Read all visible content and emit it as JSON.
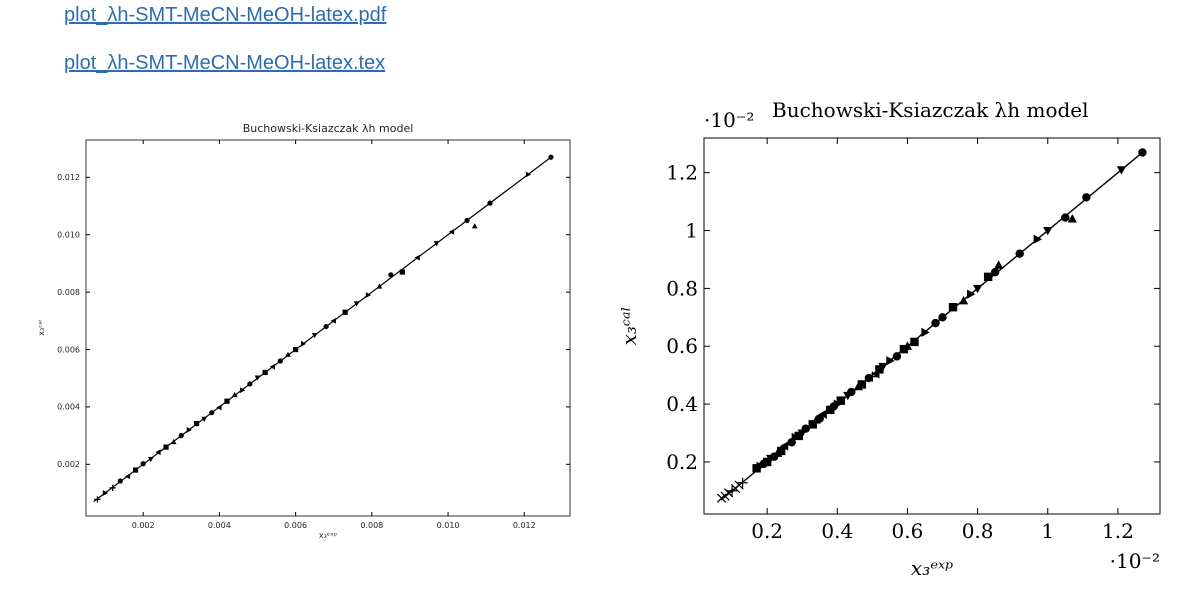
{
  "links": [
    {
      "label": "plot_λh-SMT-MeCN-MeOH-latex.pdf"
    },
    {
      "label": "plot_λh-SMT-MeCN-MeOH-latex.tex"
    }
  ],
  "chart_data": [
    {
      "type": "scatter",
      "title": "Buchowski-Ksiazczak λh model",
      "xlabel": "x₃ᵉˣᵖ",
      "ylabel": "x₃ᶜᵃˡ",
      "xlim": [
        0.0005,
        0.0132
      ],
      "ylim": [
        0.0002,
        0.0133
      ],
      "xticks": [
        "0.002",
        "0.004",
        "0.006",
        "0.008",
        "0.010",
        "0.012"
      ],
      "yticks": [
        "0.002",
        "0.004",
        "0.006",
        "0.008",
        "0.010",
        "0.012"
      ],
      "fit_line": {
        "x": [
          0.0007,
          0.0127
        ],
        "y": [
          0.0007,
          0.0127
        ]
      },
      "points": {
        "x": [
          0.0008,
          0.001,
          0.0012,
          0.0014,
          0.0016,
          0.0018,
          0.002,
          0.0022,
          0.0024,
          0.0026,
          0.0028,
          0.003,
          0.0032,
          0.0034,
          0.0036,
          0.0038,
          0.004,
          0.0042,
          0.0044,
          0.0046,
          0.0048,
          0.005,
          0.0052,
          0.0054,
          0.0056,
          0.0058,
          0.006,
          0.0062,
          0.0065,
          0.0068,
          0.007,
          0.0073,
          0.0076,
          0.0079,
          0.0082,
          0.0085,
          0.0088,
          0.0092,
          0.0097,
          0.0101,
          0.0105,
          0.0107,
          0.0111,
          0.0121,
          0.0127
        ],
        "y": [
          0.00078,
          0.001,
          0.00118,
          0.00142,
          0.00158,
          0.0018,
          0.00202,
          0.00218,
          0.00242,
          0.0026,
          0.00278,
          0.003,
          0.0032,
          0.00342,
          0.00358,
          0.0038,
          0.00398,
          0.0042,
          0.00442,
          0.00458,
          0.0048,
          0.00502,
          0.0052,
          0.0054,
          0.0056,
          0.00582,
          0.006,
          0.0062,
          0.0065,
          0.0068,
          0.007,
          0.0073,
          0.0076,
          0.0079,
          0.0082,
          0.0086,
          0.0087,
          0.0092,
          0.0097,
          0.0101,
          0.0105,
          0.0103,
          0.0111,
          0.0121,
          0.0127
        ],
        "markers": [
          "+",
          "triangle-right",
          "+",
          "circle",
          "triangle-left",
          "square",
          "circle",
          "triangle-down",
          "triangle-left",
          "square",
          "triangle-up",
          "circle",
          "triangle-right",
          "square",
          "triangle-down",
          "circle",
          "triangle-left",
          "square",
          "triangle-up",
          "triangle-right",
          "circle",
          "triangle-down",
          "square",
          "triangle-left",
          "circle",
          "triangle-up",
          "square",
          "triangle-right",
          "triangle-down",
          "circle",
          "triangle-left",
          "square",
          "triangle-down",
          "triangle-right",
          "triangle-up",
          "circle",
          "square",
          "triangle-left",
          "triangle-down",
          "triangle-left",
          "circle",
          "triangle-up",
          "circle",
          "triangle-right",
          "circle"
        ]
      }
    },
    {
      "type": "scatter",
      "title": "Buchowski-Ksiazczak λh model",
      "xlabel": "x₃ᵉˣᵖ",
      "ylabel": "x₃ᶜᵃˡ",
      "x_exponent": "·10⁻²",
      "y_exponent": "·10⁻²",
      "xlim": [
        0.02,
        1.32
      ],
      "ylim": [
        0.02,
        1.32
      ],
      "xticks": [
        "0.2",
        "0.4",
        "0.6",
        "0.8",
        "1",
        "1.2"
      ],
      "yticks": [
        "0.2",
        "0.4",
        "0.6",
        "0.8",
        "1",
        "1.2"
      ],
      "fit_line": {
        "x": [
          0.07,
          1.27
        ],
        "y": [
          0.07,
          1.27
        ]
      },
      "points": {
        "x": [
          0.07,
          0.08,
          0.09,
          0.1,
          0.11,
          0.12,
          0.13,
          0.17,
          0.18,
          0.19,
          0.2,
          0.21,
          0.22,
          0.23,
          0.24,
          0.25,
          0.27,
          0.28,
          0.29,
          0.3,
          0.31,
          0.33,
          0.34,
          0.35,
          0.36,
          0.38,
          0.39,
          0.4,
          0.41,
          0.43,
          0.44,
          0.46,
          0.47,
          0.49,
          0.5,
          0.51,
          0.52,
          0.53,
          0.55,
          0.57,
          0.59,
          0.6,
          0.62,
          0.65,
          0.68,
          0.7,
          0.73,
          0.76,
          0.78,
          0.8,
          0.83,
          0.85,
          0.86,
          0.92,
          0.97,
          1.0,
          1.05,
          1.07,
          1.11,
          1.21,
          1.27
        ],
        "y": [
          0.075,
          0.082,
          0.093,
          0.1,
          0.108,
          0.12,
          0.128,
          0.178,
          0.185,
          0.193,
          0.2,
          0.212,
          0.218,
          0.23,
          0.238,
          0.255,
          0.268,
          0.285,
          0.29,
          0.3,
          0.315,
          0.33,
          0.345,
          0.35,
          0.365,
          0.38,
          0.392,
          0.4,
          0.412,
          0.43,
          0.442,
          0.46,
          0.468,
          0.49,
          0.495,
          0.505,
          0.52,
          0.53,
          0.55,
          0.565,
          0.59,
          0.6,
          0.615,
          0.648,
          0.68,
          0.7,
          0.735,
          0.757,
          0.78,
          0.8,
          0.84,
          0.856,
          0.88,
          0.92,
          0.97,
          1.0,
          1.045,
          1.04,
          1.115,
          1.21,
          1.27
        ],
        "markers": [
          "x",
          "x",
          "x",
          "+",
          "x",
          "x",
          "+",
          "square",
          "triangle-right",
          "circle",
          "square",
          "triangle-down",
          "circle",
          "triangle-up",
          "square",
          "triangle-left",
          "circle",
          "triangle-right",
          "square",
          "triangle-down",
          "circle",
          "square",
          "triangle-up",
          "circle",
          "triangle-left",
          "square",
          "circle",
          "triangle-right",
          "square",
          "triangle-down",
          "circle",
          "triangle-up",
          "square",
          "circle",
          "+",
          "triangle-left",
          "square",
          "triangle-down",
          "triangle-right",
          "circle",
          "square",
          "triangle-up",
          "square",
          "triangle-right",
          "circle",
          "circle",
          "square",
          "triangle-up",
          "triangle-right",
          "triangle-down",
          "square",
          "circle",
          "triangle-up",
          "circle",
          "triangle-right",
          "triangle-down",
          "circle",
          "triangle-up",
          "circle",
          "triangle-down",
          "circle"
        ]
      }
    }
  ]
}
